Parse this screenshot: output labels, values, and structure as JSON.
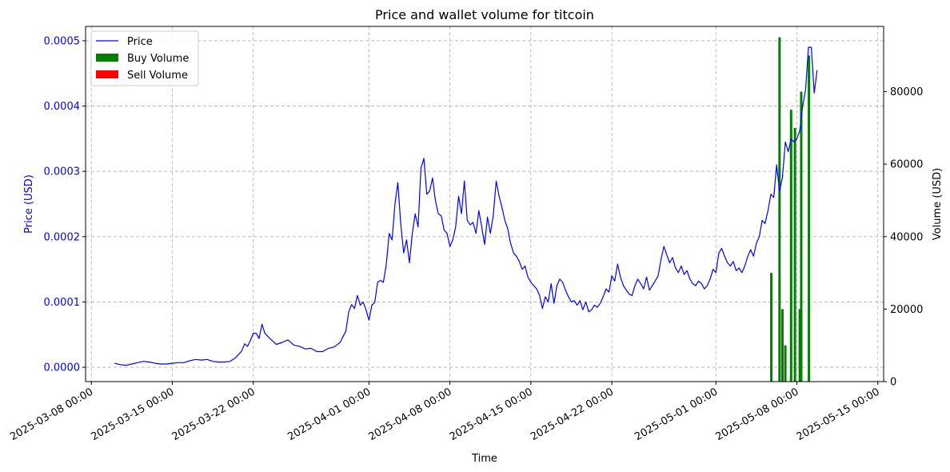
{
  "chart_data": {
    "type": "line",
    "title": "Price and wallet volume for titcoin",
    "xlabel": "Time",
    "ylabel_left": "Price (USD)",
    "ylabel_right": "Volume (USD)",
    "x_range": [
      "2025-03-07 12:00",
      "2025-05-15 12:00"
    ],
    "price_ylim": [
      -2.2e-05,
      0.000522
    ],
    "volume_ylim": [
      0,
      98000
    ],
    "grid": true,
    "legend_position": "upper-left",
    "colors": {
      "price": "#0000ff",
      "buy": "#008000",
      "sell": "#ff0000",
      "left_axis_text": "#0000ff"
    },
    "x_ticks": [
      "2025-03-08 00:00",
      "2025-03-15 00:00",
      "2025-03-22 00:00",
      "2025-04-01 00:00",
      "2025-04-08 00:00",
      "2025-04-15 00:00",
      "2025-04-22 00:00",
      "2025-05-01 00:00",
      "2025-05-08 00:00",
      "2025-05-15 00:00"
    ],
    "price_ticks": [
      "0.0000",
      "0.0001",
      "0.0002",
      "0.0003",
      "0.0004",
      "0.0005"
    ],
    "volume_ticks": [
      "0",
      "20000",
      "40000",
      "60000",
      "80000"
    ],
    "series": [
      {
        "name": "Price",
        "kind": "line",
        "points": [
          [
            "2025-03-10 00:00",
            6e-06
          ],
          [
            "2025-03-10 12:00",
            4e-06
          ],
          [
            "2025-03-11 00:00",
            3e-06
          ],
          [
            "2025-03-11 12:00",
            5e-06
          ],
          [
            "2025-03-12 00:00",
            7e-06
          ],
          [
            "2025-03-12 12:00",
            9e-06
          ],
          [
            "2025-03-13 00:00",
            8e-06
          ],
          [
            "2025-03-13 12:00",
            6e-06
          ],
          [
            "2025-03-14 00:00",
            5e-06
          ],
          [
            "2025-03-14 12:00",
            5e-06
          ],
          [
            "2025-03-15 00:00",
            6e-06
          ],
          [
            "2025-03-15 12:00",
            7e-06
          ],
          [
            "2025-03-16 00:00",
            7e-06
          ],
          [
            "2025-03-16 12:00",
            1e-05
          ],
          [
            "2025-03-17 00:00",
            1.2e-05
          ],
          [
            "2025-03-17 12:00",
            1.1e-05
          ],
          [
            "2025-03-18 00:00",
            1.2e-05
          ],
          [
            "2025-03-18 12:00",
            9e-06
          ],
          [
            "2025-03-19 00:00",
            8e-06
          ],
          [
            "2025-03-19 12:00",
            8e-06
          ],
          [
            "2025-03-20 00:00",
            9e-06
          ],
          [
            "2025-03-20 12:00",
            1.5e-05
          ],
          [
            "2025-03-21 00:00",
            2.5e-05
          ],
          [
            "2025-03-21 06:00",
            3.6e-05
          ],
          [
            "2025-03-21 12:00",
            3.2e-05
          ],
          [
            "2025-03-21 18:00",
            4.1e-05
          ],
          [
            "2025-03-22 00:00",
            5.2e-05
          ],
          [
            "2025-03-22 06:00",
            5.2e-05
          ],
          [
            "2025-03-22 12:00",
            4.4e-05
          ],
          [
            "2025-03-22 18:00",
            6.6e-05
          ],
          [
            "2025-03-23 00:00",
            5.2e-05
          ],
          [
            "2025-03-23 12:00",
            4.3e-05
          ],
          [
            "2025-03-24 00:00",
            3.5e-05
          ],
          [
            "2025-03-24 12:00",
            3.8e-05
          ],
          [
            "2025-03-25 00:00",
            4.2e-05
          ],
          [
            "2025-03-25 12:00",
            3.4e-05
          ],
          [
            "2025-03-26 00:00",
            3.2e-05
          ],
          [
            "2025-03-26 12:00",
            2.8e-05
          ],
          [
            "2025-03-27 00:00",
            2.9e-05
          ],
          [
            "2025-03-27 12:00",
            2.4e-05
          ],
          [
            "2025-03-28 00:00",
            2.4e-05
          ],
          [
            "2025-03-28 12:00",
            2.9e-05
          ],
          [
            "2025-03-29 00:00",
            3.1e-05
          ],
          [
            "2025-03-29 12:00",
            3.8e-05
          ],
          [
            "2025-03-30 00:00",
            5.5e-05
          ],
          [
            "2025-03-30 06:00",
            8.5e-05
          ],
          [
            "2025-03-30 12:00",
            9.6e-05
          ],
          [
            "2025-03-30 18:00",
            9e-05
          ],
          [
            "2025-03-31 00:00",
            0.00011
          ],
          [
            "2025-03-31 06:00",
            9.5e-05
          ],
          [
            "2025-03-31 12:00",
            0.0001
          ],
          [
            "2025-03-31 18:00",
            8.8e-05
          ],
          [
            "2025-04-01 00:00",
            7.2e-05
          ],
          [
            "2025-04-01 06:00",
            9.5e-05
          ],
          [
            "2025-04-01 12:00",
            9.9e-05
          ],
          [
            "2025-04-01 18:00",
            0.00013
          ],
          [
            "2025-04-02 00:00",
            0.000133
          ],
          [
            "2025-04-02 06:00",
            0.00013
          ],
          [
            "2025-04-02 12:00",
            0.000158
          ],
          [
            "2025-04-02 18:00",
            0.000205
          ],
          [
            "2025-04-03 00:00",
            0.000195
          ],
          [
            "2025-04-03 06:00",
            0.00025
          ],
          [
            "2025-04-03 12:00",
            0.000283
          ],
          [
            "2025-04-03 18:00",
            0.00022
          ],
          [
            "2025-04-04 00:00",
            0.000175
          ],
          [
            "2025-04-04 06:00",
            0.000195
          ],
          [
            "2025-04-04 12:00",
            0.00016
          ],
          [
            "2025-04-04 18:00",
            0.000205
          ],
          [
            "2025-04-05 00:00",
            0.000235
          ],
          [
            "2025-04-05 06:00",
            0.000215
          ],
          [
            "2025-04-05 12:00",
            0.000305
          ],
          [
            "2025-04-05 18:00",
            0.00032
          ],
          [
            "2025-04-06 00:00",
            0.000265
          ],
          [
            "2025-04-06 06:00",
            0.00027
          ],
          [
            "2025-04-06 12:00",
            0.00029
          ],
          [
            "2025-04-06 18:00",
            0.000255
          ],
          [
            "2025-04-07 00:00",
            0.000235
          ],
          [
            "2025-04-07 06:00",
            0.000232
          ],
          [
            "2025-04-07 12:00",
            0.00021
          ],
          [
            "2025-04-07 18:00",
            0.000205
          ],
          [
            "2025-04-08 00:00",
            0.000185
          ],
          [
            "2025-04-08 06:00",
            0.000195
          ],
          [
            "2025-04-08 12:00",
            0.000215
          ],
          [
            "2025-04-08 18:00",
            0.000262
          ],
          [
            "2025-04-09 00:00",
            0.000235
          ],
          [
            "2025-04-09 06:00",
            0.000285
          ],
          [
            "2025-04-09 12:00",
            0.000225
          ],
          [
            "2025-04-09 18:00",
            0.000218
          ],
          [
            "2025-04-10 00:00",
            0.000222
          ],
          [
            "2025-04-10 06:00",
            0.000205
          ],
          [
            "2025-04-10 12:00",
            0.00024
          ],
          [
            "2025-04-10 18:00",
            0.000215
          ],
          [
            "2025-04-11 00:00",
            0.000188
          ],
          [
            "2025-04-11 06:00",
            0.00023
          ],
          [
            "2025-04-11 12:00",
            0.000205
          ],
          [
            "2025-04-11 18:00",
            0.000232
          ],
          [
            "2025-04-12 00:00",
            0.000285
          ],
          [
            "2025-04-12 06:00",
            0.000262
          ],
          [
            "2025-04-12 12:00",
            0.000245
          ],
          [
            "2025-04-12 18:00",
            0.000225
          ],
          [
            "2025-04-13 00:00",
            0.000212
          ],
          [
            "2025-04-13 06:00",
            0.00019
          ],
          [
            "2025-04-13 12:00",
            0.000175
          ],
          [
            "2025-04-13 18:00",
            0.00017
          ],
          [
            "2025-04-14 00:00",
            0.000162
          ],
          [
            "2025-04-14 06:00",
            0.00015
          ],
          [
            "2025-04-14 12:00",
            0.000155
          ],
          [
            "2025-04-14 18:00",
            0.000138
          ],
          [
            "2025-04-15 00:00",
            0.00013
          ],
          [
            "2025-04-15 06:00",
            0.000125
          ],
          [
            "2025-04-15 12:00",
            0.00012
          ],
          [
            "2025-04-15 18:00",
            0.00011
          ],
          [
            "2025-04-16 00:00",
            9e-05
          ],
          [
            "2025-04-16 06:00",
            0.000108
          ],
          [
            "2025-04-16 12:00",
            0.0001
          ],
          [
            "2025-04-16 18:00",
            0.000128
          ],
          [
            "2025-04-17 00:00",
            9.8e-05
          ],
          [
            "2025-04-17 06:00",
            0.000125
          ],
          [
            "2025-04-17 12:00",
            0.000135
          ],
          [
            "2025-04-17 18:00",
            0.00013
          ],
          [
            "2025-04-18 00:00",
            0.000118
          ],
          [
            "2025-04-18 06:00",
            0.000108
          ],
          [
            "2025-04-18 12:00",
            0.0001
          ],
          [
            "2025-04-18 18:00",
            0.000102
          ],
          [
            "2025-04-19 00:00",
            9.5e-05
          ],
          [
            "2025-04-19 06:00",
            0.000102
          ],
          [
            "2025-04-19 12:00",
            8.8e-05
          ],
          [
            "2025-04-19 18:00",
            0.0001
          ],
          [
            "2025-04-20 00:00",
            8.5e-05
          ],
          [
            "2025-04-20 06:00",
            8.8e-05
          ],
          [
            "2025-04-20 12:00",
            9.5e-05
          ],
          [
            "2025-04-20 18:00",
            9.2e-05
          ],
          [
            "2025-04-21 00:00",
            9.8e-05
          ],
          [
            "2025-04-21 06:00",
            0.000108
          ],
          [
            "2025-04-21 12:00",
            0.00012
          ],
          [
            "2025-04-21 18:00",
            0.000115
          ],
          [
            "2025-04-22 00:00",
            0.00014
          ],
          [
            "2025-04-22 06:00",
            0.000132
          ],
          [
            "2025-04-22 12:00",
            0.000158
          ],
          [
            "2025-04-22 18:00",
            0.000138
          ],
          [
            "2025-04-23 00:00",
            0.000125
          ],
          [
            "2025-04-23 06:00",
            0.000118
          ],
          [
            "2025-04-23 12:00",
            0.000112
          ],
          [
            "2025-04-23 18:00",
            0.00011
          ],
          [
            "2025-04-24 00:00",
            0.000125
          ],
          [
            "2025-04-24 06:00",
            0.000135
          ],
          [
            "2025-04-24 12:00",
            0.000128
          ],
          [
            "2025-04-24 18:00",
            0.00012
          ],
          [
            "2025-04-25 00:00",
            0.000138
          ],
          [
            "2025-04-25 06:00",
            0.000118
          ],
          [
            "2025-04-25 12:00",
            0.000125
          ],
          [
            "2025-04-25 18:00",
            0.000132
          ],
          [
            "2025-04-26 00:00",
            0.00014
          ],
          [
            "2025-04-26 06:00",
            0.000165
          ],
          [
            "2025-04-26 12:00",
            0.000185
          ],
          [
            "2025-04-26 18:00",
            0.000172
          ],
          [
            "2025-04-27 00:00",
            0.00016
          ],
          [
            "2025-04-27 06:00",
            0.000168
          ],
          [
            "2025-04-27 12:00",
            0.000152
          ],
          [
            "2025-04-27 18:00",
            0.000145
          ],
          [
            "2025-04-28 00:00",
            0.000155
          ],
          [
            "2025-04-28 06:00",
            0.000142
          ],
          [
            "2025-04-28 12:00",
            0.000148
          ],
          [
            "2025-04-28 18:00",
            0.000135
          ],
          [
            "2025-04-29 00:00",
            0.000128
          ],
          [
            "2025-04-29 06:00",
            0.000125
          ],
          [
            "2025-04-29 12:00",
            0.000132
          ],
          [
            "2025-04-29 18:00",
            0.000128
          ],
          [
            "2025-04-30 00:00",
            0.00012
          ],
          [
            "2025-04-30 06:00",
            0.000125
          ],
          [
            "2025-04-30 12:00",
            0.000135
          ],
          [
            "2025-04-30 18:00",
            0.00015
          ],
          [
            "2025-05-01 00:00",
            0.000145
          ],
          [
            "2025-05-01 06:00",
            0.000175
          ],
          [
            "2025-05-01 12:00",
            0.000182
          ],
          [
            "2025-05-01 18:00",
            0.00017
          ],
          [
            "2025-05-02 00:00",
            0.00016
          ],
          [
            "2025-05-02 06:00",
            0.000155
          ],
          [
            "2025-05-02 12:00",
            0.000162
          ],
          [
            "2025-05-02 18:00",
            0.000148
          ],
          [
            "2025-05-03 00:00",
            0.000152
          ],
          [
            "2025-05-03 06:00",
            0.000145
          ],
          [
            "2025-05-03 12:00",
            0.000155
          ],
          [
            "2025-05-03 18:00",
            0.00017
          ],
          [
            "2025-05-04 00:00",
            0.00018
          ],
          [
            "2025-05-04 06:00",
            0.00017
          ],
          [
            "2025-05-04 12:00",
            0.00019
          ],
          [
            "2025-05-04 18:00",
            0.0002
          ],
          [
            "2025-05-05 00:00",
            0.000225
          ],
          [
            "2025-05-05 06:00",
            0.00022
          ],
          [
            "2025-05-05 12:00",
            0.00024
          ],
          [
            "2025-05-05 18:00",
            0.000265
          ],
          [
            "2025-05-06 00:00",
            0.00026
          ],
          [
            "2025-05-06 06:00",
            0.00031
          ],
          [
            "2025-05-06 12:00",
            0.00027
          ],
          [
            "2025-05-06 18:00",
            0.00029
          ],
          [
            "2025-05-07 00:00",
            0.000345
          ],
          [
            "2025-05-07 06:00",
            0.00033
          ],
          [
            "2025-05-07 12:00",
            0.00035
          ],
          [
            "2025-05-07 18:00",
            0.000345
          ],
          [
            "2025-05-08 00:00",
            0.00035
          ],
          [
            "2025-05-08 06:00",
            0.000362
          ],
          [
            "2025-05-08 12:00",
            0.0004
          ],
          [
            "2025-05-08 18:00",
            0.000425
          ],
          [
            "2025-05-09 00:00",
            0.00049
          ],
          [
            "2025-05-09 06:00",
            0.00049
          ],
          [
            "2025-05-09 12:00",
            0.00042
          ],
          [
            "2025-05-09 18:00",
            0.000455
          ]
        ]
      },
      {
        "name": "Buy Volume",
        "kind": "bar",
        "points": [
          [
            "2025-05-05 19:00",
            30000
          ],
          [
            "2025-05-06 12:00",
            95000
          ],
          [
            "2025-05-06 18:00",
            20000
          ],
          [
            "2025-05-07 00:00",
            10000
          ],
          [
            "2025-05-07 12:00",
            75000
          ],
          [
            "2025-05-07 20:00",
            70000
          ],
          [
            "2025-05-08 06:00",
            20000
          ],
          [
            "2025-05-08 09:00",
            80000
          ],
          [
            "2025-05-09 01:00",
            90000
          ]
        ]
      },
      {
        "name": "Sell Volume",
        "kind": "bar",
        "points": []
      }
    ]
  }
}
